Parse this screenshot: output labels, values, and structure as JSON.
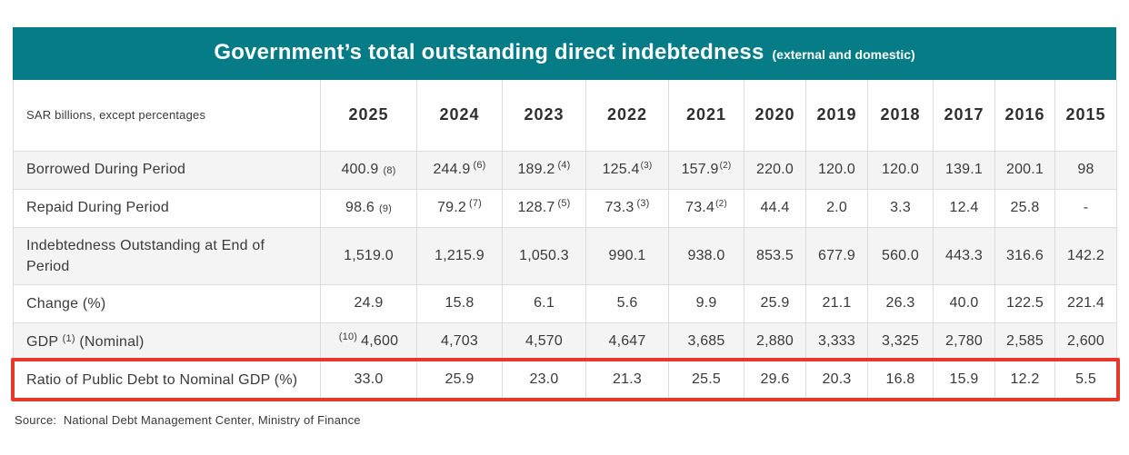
{
  "title": {
    "main": "Government’s total outstanding direct indebtedness",
    "suffix": "(external and domestic)"
  },
  "source": "Source:  National Debt Management Center, Ministry of Finance",
  "colors": {
    "header_teal": "#067c86",
    "highlight_red": "#e6392b",
    "row_alt": "#f4f4f4",
    "border": "#dcdcdc",
    "text": "#3a3a3a"
  },
  "chart_data": {
    "type": "table",
    "title": "Government’s total outstanding direct indebtedness (external and domestic)",
    "unit_note": "SAR billions, except percentages",
    "columns": [
      "2025",
      "2024",
      "2023",
      "2022",
      "2021",
      "2020",
      "2019",
      "2018",
      "2017",
      "2016",
      "2015"
    ],
    "rows": [
      {
        "label": "Borrowed During Period",
        "cells": [
          {
            "v": "400.9",
            "n": "(8)",
            "ns": "base"
          },
          {
            "v": "244.9",
            "n": "(6)",
            "ns": "sup"
          },
          {
            "v": "189.2",
            "n": "(4)",
            "ns": "sup"
          },
          {
            "v": "125.4",
            "n": "(3)",
            "ns": "sup-tight"
          },
          {
            "v": "157.9",
            "n": "(2)",
            "ns": "sup-tight"
          },
          {
            "v": "220.0"
          },
          {
            "v": "120.0"
          },
          {
            "v": "120.0"
          },
          {
            "v": "139.1"
          },
          {
            "v": "200.1"
          },
          {
            "v": "98"
          }
        ]
      },
      {
        "label": "Repaid During Period",
        "cells": [
          {
            "v": "98.6",
            "n": "(9)",
            "ns": "base"
          },
          {
            "v": "79.2",
            "n": "(7)",
            "ns": "sup"
          },
          {
            "v": "128.7",
            "n": "(5)",
            "ns": "sup"
          },
          {
            "v": "73.3",
            "n": "(3)",
            "ns": "sup"
          },
          {
            "v": "73.4",
            "n": "(2)",
            "ns": "sup-tight"
          },
          {
            "v": "44.4"
          },
          {
            "v": "2.0"
          },
          {
            "v": "3.3"
          },
          {
            "v": "12.4"
          },
          {
            "v": "25.8"
          },
          {
            "v": "-"
          }
        ]
      },
      {
        "label": "Indebtedness Outstanding at End of Period",
        "cells": [
          {
            "v": "1,519.0"
          },
          {
            "v": "1,215.9"
          },
          {
            "v": "1,050.3"
          },
          {
            "v": "990.1"
          },
          {
            "v": "938.0"
          },
          {
            "v": "853.5"
          },
          {
            "v": "677.9"
          },
          {
            "v": "560.0"
          },
          {
            "v": "443.3"
          },
          {
            "v": "316.6"
          },
          {
            "v": "142.2"
          }
        ]
      },
      {
        "label": "Change (%)",
        "cells": [
          {
            "v": "24.9"
          },
          {
            "v": "15.8"
          },
          {
            "v": "6.1"
          },
          {
            "v": "5.6"
          },
          {
            "v": "9.9"
          },
          {
            "v": "25.9"
          },
          {
            "v": "21.1"
          },
          {
            "v": "26.3"
          },
          {
            "v": "40.0"
          },
          {
            "v": "122.5"
          },
          {
            "v": "221.4"
          }
        ]
      },
      {
        "label": "GDP (1) (Nominal)",
        "label_parts": [
          {
            "t": "GDP "
          },
          {
            "t": "(1)",
            "sup": true
          },
          {
            "t": " (Nominal)"
          }
        ],
        "cells": [
          {
            "v": "4,600",
            "n": "(10)",
            "ns": "sup-before"
          },
          {
            "v": "4,703"
          },
          {
            "v": "4,570"
          },
          {
            "v": "4,647"
          },
          {
            "v": "3,685"
          },
          {
            "v": "2,880"
          },
          {
            "v": "3,333"
          },
          {
            "v": "3,325"
          },
          {
            "v": "2,780"
          },
          {
            "v": "2,585"
          },
          {
            "v": "2,600"
          }
        ]
      },
      {
        "label": "Ratio of Public Debt to Nominal GDP (%)",
        "highlight": true,
        "cells": [
          {
            "v": "33.0"
          },
          {
            "v": "25.9"
          },
          {
            "v": "23.0"
          },
          {
            "v": "21.3"
          },
          {
            "v": "25.5"
          },
          {
            "v": "29.6"
          },
          {
            "v": "20.3"
          },
          {
            "v": "16.8"
          },
          {
            "v": "15.9"
          },
          {
            "v": "12.2"
          },
          {
            "v": "5.5"
          }
        ]
      }
    ]
  }
}
